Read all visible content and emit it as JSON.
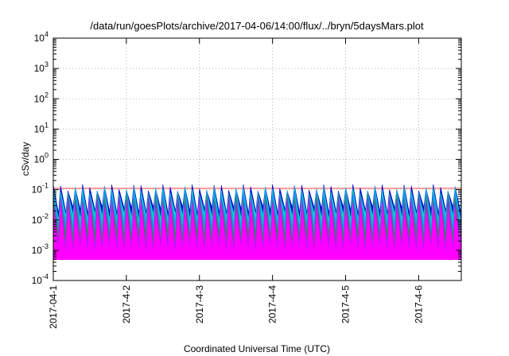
{
  "chart_data": {
    "type": "area",
    "title": "/data/run/goesPlots/archive/2017-04-06/14:00/flux/../bryn/5daysMars.plot",
    "xlabel": "Coordinated Universal Time (UTC)",
    "ylabel": "cSv/day",
    "yscale": "log",
    "ylim": [
      0.0001,
      10000
    ],
    "y_ticks": [
      {
        "value": 0.0001,
        "base": "10",
        "exp": "-4"
      },
      {
        "value": 0.001,
        "base": "10",
        "exp": "-3"
      },
      {
        "value": 0.01,
        "base": "10",
        "exp": "-2"
      },
      {
        "value": 0.1,
        "base": "10",
        "exp": "-1"
      },
      {
        "value": 1,
        "base": "10",
        "exp": "0"
      },
      {
        "value": 10,
        "base": "10",
        "exp": "1"
      },
      {
        "value": 100,
        "base": "10",
        "exp": "2"
      },
      {
        "value": 1000,
        "base": "10",
        "exp": "3"
      },
      {
        "value": 10000,
        "base": "10",
        "exp": "4"
      }
    ],
    "xlim": [
      "2017-04-01 00:00",
      "2017-04-06 14:00"
    ],
    "x_ticks": [
      {
        "value": "2017-04-01 00:00",
        "label": "2017-04-1"
      },
      {
        "value": "2017-04-02 00:00",
        "label": "2017-4-2"
      },
      {
        "value": "2017-04-03 00:00",
        "label": "2017-4-3"
      },
      {
        "value": "2017-04-04 00:00",
        "label": "2017-4-4"
      },
      {
        "value": "2017-04-05 00:00",
        "label": "2017-4-5"
      },
      {
        "value": "2017-04-06 00:00",
        "label": "2017-4-6"
      }
    ],
    "grid": true,
    "cycle_hours": 2.4,
    "series": [
      {
        "color": "#ff00ff",
        "peak": 0.03,
        "trough": 0.0008
      },
      {
        "color": "#a020f0",
        "peak": 0.045,
        "trough": 0.0015
      },
      {
        "color": "#2e8b57",
        "peak": 0.06,
        "trough": 0.003
      },
      {
        "color": "#1e90ff",
        "peak": 0.08,
        "trough": 0.006
      },
      {
        "color": "#00ced1",
        "peak": 0.1,
        "trough": 0.012
      },
      {
        "color": "#0000cd",
        "peak": 0.12,
        "trough": 0.02
      },
      {
        "color": "#ff4040",
        "peak": 0.11,
        "trough": 0.11
      }
    ]
  }
}
